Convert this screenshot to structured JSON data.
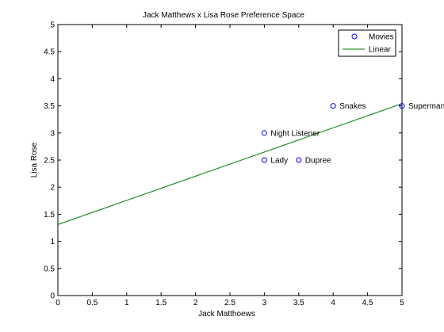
{
  "chart_data": {
    "type": "scatter",
    "title": "Jack Matthews x Lisa Rose Preference Space",
    "xlabel": "Jack Matthoews",
    "ylabel": "Lisa Rose",
    "xlim": [
      0,
      5
    ],
    "ylim": [
      0,
      5
    ],
    "xticks": [
      "0",
      "0.5",
      "1",
      "1.5",
      "2",
      "2.5",
      "3",
      "3.5",
      "4",
      "4.5",
      "5"
    ],
    "yticks": [
      "0",
      "0.5",
      "1",
      "1.5",
      "2",
      "2.5",
      "3",
      "3.5",
      "4",
      "4.5",
      "5"
    ],
    "grid": false,
    "legend_position": "top-right",
    "series": [
      {
        "name": "Movies",
        "kind": "scatter",
        "marker": "circle",
        "color": "#0000ff",
        "points": [
          {
            "x": 5,
            "y": 3.5,
            "label": "Superman"
          },
          {
            "x": 4,
            "y": 3.5,
            "label": "Snakes"
          },
          {
            "x": 3,
            "y": 3.0,
            "label": "Night Listener"
          },
          {
            "x": 3,
            "y": 2.5,
            "label": "Lady"
          },
          {
            "x": 3.5,
            "y": 2.5,
            "label": "Dupree"
          }
        ]
      },
      {
        "name": "Linear",
        "kind": "line",
        "color": "#007f00",
        "x": [
          0,
          5
        ],
        "y": [
          1.31,
          3.54
        ]
      }
    ]
  }
}
